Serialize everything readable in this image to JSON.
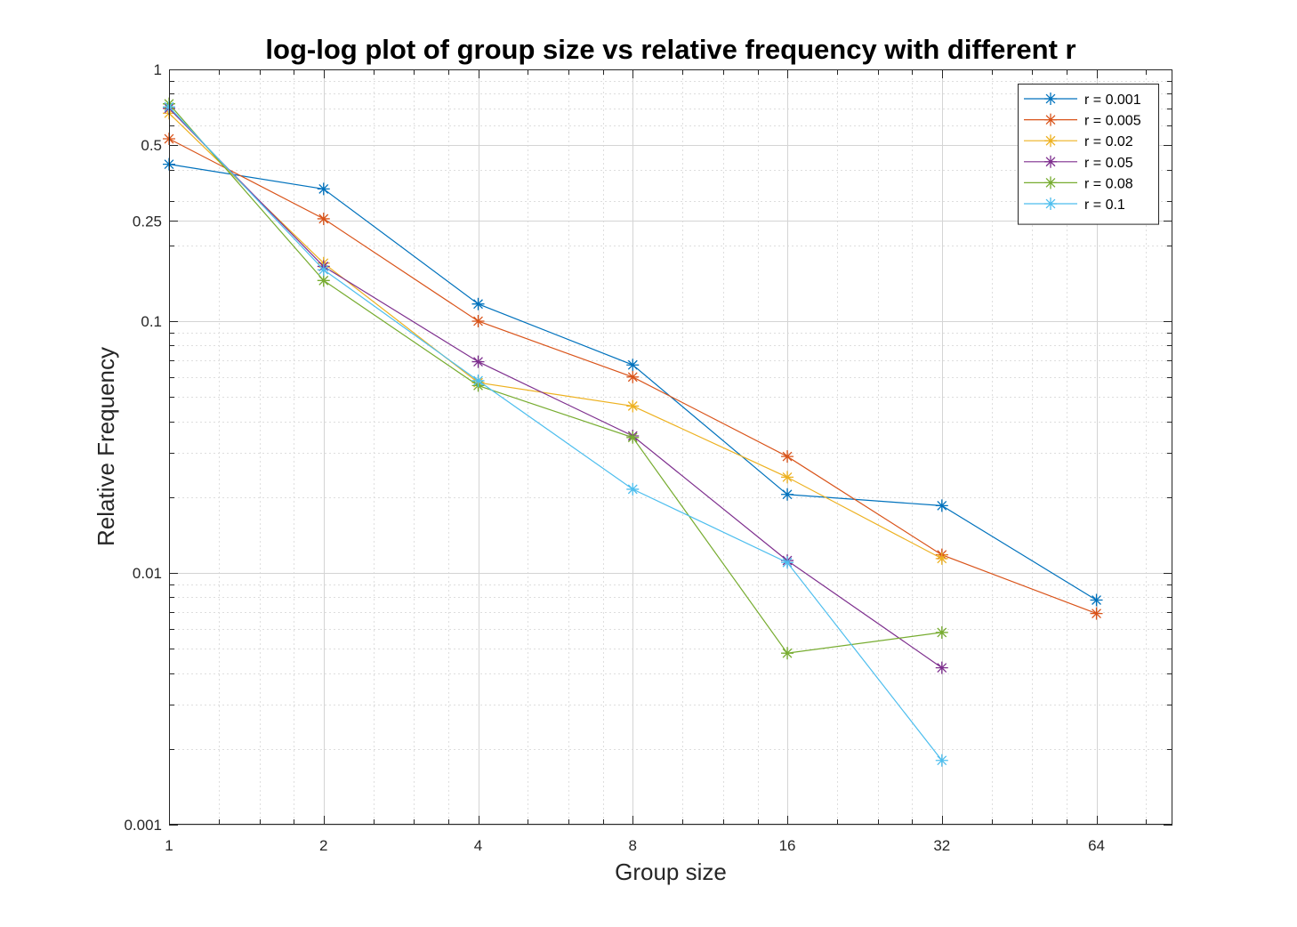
{
  "chart_data": {
    "type": "line",
    "title": "log-log plot of group size vs relative frequency with different r",
    "xlabel": "Group size",
    "ylabel": "Relative Frequency",
    "xscale": "log2",
    "yscale": "log10",
    "xlim": [
      1,
      90
    ],
    "ylim": [
      0.001,
      1
    ],
    "xticks": [
      1,
      2,
      4,
      8,
      16,
      32,
      64
    ],
    "xtick_labels": [
      "1",
      "2",
      "4",
      "8",
      "16",
      "32",
      "64"
    ],
    "yticks": [
      0.001,
      0.01,
      0.1,
      0.25,
      0.5,
      1
    ],
    "ytick_labels": [
      "0.001",
      "0.01",
      "0.1",
      "0.25",
      "0.5",
      "1"
    ],
    "grid": true,
    "legend_position": "top-right",
    "marker": "asterisk",
    "series": [
      {
        "name": "r = 0.001",
        "color": "#0072BD",
        "x": [
          1,
          2,
          4,
          8,
          16,
          32,
          64
        ],
        "y": [
          0.42,
          0.335,
          0.117,
          0.067,
          0.0205,
          0.0185,
          0.0078
        ]
      },
      {
        "name": "r = 0.005",
        "color": "#D95319",
        "x": [
          1,
          2,
          4,
          8,
          16,
          32,
          64
        ],
        "y": [
          0.53,
          0.255,
          0.1,
          0.06,
          0.029,
          0.0118,
          0.0069
        ]
      },
      {
        "name": "r = 0.02",
        "color": "#EDB120",
        "x": [
          1,
          2,
          4,
          8,
          16,
          32
        ],
        "y": [
          0.67,
          0.17,
          0.057,
          0.046,
          0.024,
          0.0114
        ]
      },
      {
        "name": "r = 0.05",
        "color": "#7E2F8E",
        "x": [
          1,
          2,
          4,
          8,
          16,
          32
        ],
        "y": [
          0.7,
          0.165,
          0.069,
          0.035,
          0.0112,
          0.0042
        ]
      },
      {
        "name": "r = 0.08",
        "color": "#77AC30",
        "x": [
          1,
          2,
          4,
          8,
          16,
          32
        ],
        "y": [
          0.73,
          0.145,
          0.0555,
          0.0345,
          0.0048,
          0.0058
        ]
      },
      {
        "name": "r = 0.1",
        "color": "#4DBEEE",
        "x": [
          1,
          2,
          4,
          8,
          16,
          32
        ],
        "y": [
          0.71,
          0.16,
          0.058,
          0.0215,
          0.011,
          0.0018
        ]
      }
    ]
  }
}
